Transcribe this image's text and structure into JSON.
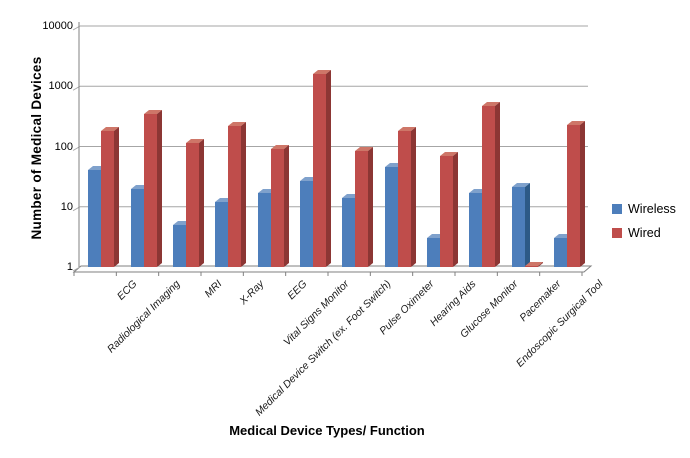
{
  "chart_data": {
    "type": "bar",
    "title": "",
    "xlabel": "Medical Device Types/ Function",
    "ylabel": "Number of Medical Devices",
    "y_scale": "log10",
    "ylim": [
      1,
      10000
    ],
    "yticks": [
      1,
      10,
      100,
      1000,
      10000
    ],
    "ytick_labels": [
      "1",
      "10",
      "100",
      "1000",
      "10000"
    ],
    "grid": true,
    "legend_position": "right",
    "categories": [
      "ECG",
      "Radiological Imaging",
      "MRI",
      "X-Ray",
      "EEG",
      "Vital Signs Monitor",
      "Medical Device Switch (ex. Foot Switch)",
      "Pulse Oximeter",
      "Hearing Aids",
      "Glucose Monitor",
      "Pacemaker",
      "Endoscopic Surgical Tool"
    ],
    "series": [
      {
        "name": "Wireless",
        "color": "#4D7EBB",
        "side_color": "#2D5A87",
        "top_color": "#7FA1CC",
        "values": [
          40,
          20,
          5,
          12,
          17,
          27,
          14,
          45,
          3,
          17,
          21,
          3
        ]
      },
      {
        "name": "Wired",
        "color": "#BF4D4B",
        "side_color": "#8C3634",
        "top_color": "#CE7668",
        "values": [
          180,
          350,
          115,
          220,
          90,
          1600,
          85,
          180,
          70,
          470,
          1,
          230
        ]
      }
    ],
    "colors": {
      "gridline": "#A6A6A6",
      "axis": "#808080",
      "background": "#FFFFFF"
    }
  }
}
